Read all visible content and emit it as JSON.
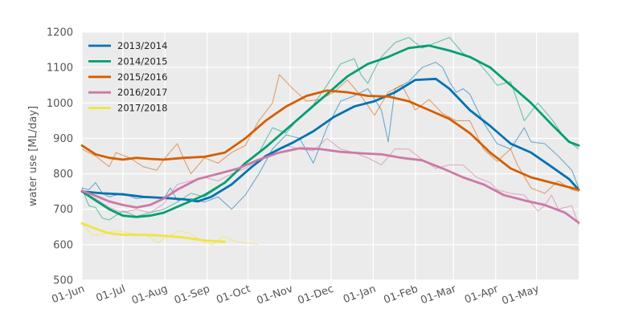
{
  "chart_data": {
    "type": "line",
    "title": "",
    "xlabel": "",
    "ylabel": "water use [ML/day]",
    "ylim": [
      500,
      1200
    ],
    "yticks": [
      500,
      600,
      700,
      800,
      900,
      1000,
      1100,
      1200
    ],
    "xlim": [
      0,
      365
    ],
    "xtick_labels": [
      "01-Jun",
      "01-Jul",
      "01-Aug",
      "01-Sep",
      "01-Oct",
      "01-Nov",
      "01-Dec",
      "01-Jan",
      "01-Feb",
      "01-Mar",
      "01-Apr",
      "01-May"
    ],
    "xtick_days": [
      0,
      30,
      61,
      92,
      122,
      153,
      183,
      214,
      245,
      273,
      304,
      334
    ],
    "grid": true,
    "legend_position": "top-left",
    "series": [
      {
        "name": "2013/2014",
        "color": "#0072B2",
        "smooth": [
          [
            0,
            750
          ],
          [
            15,
            745
          ],
          [
            30,
            742
          ],
          [
            45,
            735
          ],
          [
            60,
            732
          ],
          [
            75,
            728
          ],
          [
            85,
            722
          ],
          [
            95,
            735
          ],
          [
            110,
            770
          ],
          [
            125,
            820
          ],
          [
            135,
            850
          ],
          [
            145,
            870
          ],
          [
            155,
            888
          ],
          [
            170,
            920
          ],
          [
            185,
            960
          ],
          [
            200,
            990
          ],
          [
            215,
            1005
          ],
          [
            230,
            1030
          ],
          [
            245,
            1065
          ],
          [
            260,
            1068
          ],
          [
            270,
            1040
          ],
          [
            285,
            980
          ],
          [
            300,
            935
          ],
          [
            315,
            885
          ],
          [
            330,
            860
          ],
          [
            345,
            820
          ],
          [
            358,
            785
          ],
          [
            365,
            755
          ]
        ],
        "raw": [
          [
            0,
            760
          ],
          [
            5,
            755
          ],
          [
            10,
            775
          ],
          [
            15,
            745
          ],
          [
            20,
            735
          ],
          [
            25,
            740
          ],
          [
            30,
            745
          ],
          [
            40,
            730
          ],
          [
            50,
            735
          ],
          [
            60,
            730
          ],
          [
            65,
            760
          ],
          [
            70,
            725
          ],
          [
            80,
            730
          ],
          [
            90,
            720
          ],
          [
            100,
            735
          ],
          [
            110,
            700
          ],
          [
            120,
            740
          ],
          [
            130,
            800
          ],
          [
            140,
            870
          ],
          [
            150,
            910
          ],
          [
            160,
            900
          ],
          [
            170,
            830
          ],
          [
            180,
            930
          ],
          [
            190,
            1005
          ],
          [
            200,
            1020
          ],
          [
            210,
            1040
          ],
          [
            220,
            980
          ],
          [
            225,
            890
          ],
          [
            230,
            1040
          ],
          [
            240,
            1060
          ],
          [
            250,
            1100
          ],
          [
            260,
            1115
          ],
          [
            265,
            1100
          ],
          [
            270,
            1060
          ],
          [
            275,
            1030
          ],
          [
            280,
            1040
          ],
          [
            285,
            1025
          ],
          [
            295,
            945
          ],
          [
            305,
            885
          ],
          [
            315,
            870
          ],
          [
            325,
            930
          ],
          [
            330,
            890
          ],
          [
            340,
            885
          ],
          [
            350,
            850
          ],
          [
            360,
            810
          ],
          [
            365,
            760
          ]
        ]
      },
      {
        "name": "2014/2015",
        "color": "#009E73",
        "smooth": [
          [
            0,
            750
          ],
          [
            10,
            725
          ],
          [
            20,
            700
          ],
          [
            30,
            682
          ],
          [
            40,
            678
          ],
          [
            50,
            682
          ],
          [
            60,
            690
          ],
          [
            75,
            715
          ],
          [
            90,
            740
          ],
          [
            105,
            775
          ],
          [
            120,
            830
          ],
          [
            135,
            875
          ],
          [
            150,
            925
          ],
          [
            165,
            975
          ],
          [
            180,
            1025
          ],
          [
            195,
            1075
          ],
          [
            210,
            1110
          ],
          [
            225,
            1130
          ],
          [
            240,
            1155
          ],
          [
            255,
            1162
          ],
          [
            270,
            1148
          ],
          [
            285,
            1130
          ],
          [
            300,
            1100
          ],
          [
            315,
            1050
          ],
          [
            330,
            1000
          ],
          [
            345,
            940
          ],
          [
            358,
            890
          ],
          [
            365,
            880
          ]
        ],
        "raw": [
          [
            0,
            760
          ],
          [
            5,
            710
          ],
          [
            10,
            705
          ],
          [
            15,
            675
          ],
          [
            20,
            670
          ],
          [
            30,
            695
          ],
          [
            40,
            680
          ],
          [
            50,
            690
          ],
          [
            60,
            700
          ],
          [
            70,
            720
          ],
          [
            80,
            745
          ],
          [
            90,
            735
          ],
          [
            100,
            760
          ],
          [
            110,
            795
          ],
          [
            120,
            830
          ],
          [
            130,
            860
          ],
          [
            140,
            930
          ],
          [
            150,
            915
          ],
          [
            160,
            960
          ],
          [
            170,
            995
          ],
          [
            180,
            1050
          ],
          [
            190,
            1110
          ],
          [
            200,
            1125
          ],
          [
            205,
            1080
          ],
          [
            210,
            1055
          ],
          [
            215,
            1095
          ],
          [
            220,
            1130
          ],
          [
            230,
            1170
          ],
          [
            240,
            1185
          ],
          [
            250,
            1155
          ],
          [
            260,
            1170
          ],
          [
            270,
            1185
          ],
          [
            280,
            1140
          ],
          [
            290,
            1120
          ],
          [
            300,
            1075
          ],
          [
            305,
            1050
          ],
          [
            315,
            1060
          ],
          [
            325,
            950
          ],
          [
            335,
            1000
          ],
          [
            345,
            955
          ],
          [
            355,
            900
          ],
          [
            365,
            870
          ]
        ]
      },
      {
        "name": "2015/2016",
        "color": "#D55E00",
        "smooth": [
          [
            0,
            880
          ],
          [
            10,
            855
          ],
          [
            20,
            845
          ],
          [
            30,
            840
          ],
          [
            40,
            845
          ],
          [
            50,
            842
          ],
          [
            60,
            840
          ],
          [
            75,
            845
          ],
          [
            90,
            848
          ],
          [
            105,
            860
          ],
          [
            120,
            900
          ],
          [
            135,
            950
          ],
          [
            150,
            990
          ],
          [
            165,
            1020
          ],
          [
            180,
            1035
          ],
          [
            195,
            1030
          ],
          [
            210,
            1020
          ],
          [
            225,
            1018
          ],
          [
            240,
            1005
          ],
          [
            255,
            980
          ],
          [
            270,
            955
          ],
          [
            285,
            915
          ],
          [
            300,
            860
          ],
          [
            315,
            815
          ],
          [
            330,
            790
          ],
          [
            345,
            775
          ],
          [
            358,
            762
          ],
          [
            365,
            755
          ]
        ],
        "raw": [
          [
            0,
            870
          ],
          [
            10,
            850
          ],
          [
            20,
            820
          ],
          [
            25,
            860
          ],
          [
            35,
            845
          ],
          [
            45,
            820
          ],
          [
            55,
            810
          ],
          [
            60,
            840
          ],
          [
            70,
            885
          ],
          [
            75,
            840
          ],
          [
            80,
            800
          ],
          [
            90,
            845
          ],
          [
            100,
            830
          ],
          [
            110,
            860
          ],
          [
            120,
            880
          ],
          [
            130,
            950
          ],
          [
            140,
            1000
          ],
          [
            145,
            1080
          ],
          [
            155,
            1040
          ],
          [
            165,
            1005
          ],
          [
            175,
            1010
          ],
          [
            185,
            1030
          ],
          [
            195,
            1065
          ],
          [
            205,
            1020
          ],
          [
            215,
            965
          ],
          [
            225,
            1030
          ],
          [
            235,
            1050
          ],
          [
            245,
            980
          ],
          [
            255,
            1010
          ],
          [
            265,
            970
          ],
          [
            275,
            950
          ],
          [
            285,
            950
          ],
          [
            295,
            870
          ],
          [
            305,
            835
          ],
          [
            315,
            870
          ],
          [
            320,
            825
          ],
          [
            330,
            760
          ],
          [
            340,
            745
          ],
          [
            350,
            780
          ],
          [
            360,
            755
          ],
          [
            365,
            750
          ]
        ]
      },
      {
        "name": "2016/2017",
        "color": "#CC79A7",
        "smooth": [
          [
            0,
            752
          ],
          [
            10,
            738
          ],
          [
            20,
            722
          ],
          [
            30,
            712
          ],
          [
            40,
            705
          ],
          [
            50,
            712
          ],
          [
            60,
            730
          ],
          [
            70,
            755
          ],
          [
            85,
            785
          ],
          [
            100,
            800
          ],
          [
            115,
            815
          ],
          [
            130,
            840
          ],
          [
            145,
            860
          ],
          [
            160,
            872
          ],
          [
            175,
            870
          ],
          [
            190,
            862
          ],
          [
            205,
            858
          ],
          [
            220,
            855
          ],
          [
            235,
            845
          ],
          [
            250,
            838
          ],
          [
            265,
            815
          ],
          [
            280,
            790
          ],
          [
            295,
            770
          ],
          [
            310,
            740
          ],
          [
            325,
            725
          ],
          [
            340,
            712
          ],
          [
            355,
            690
          ],
          [
            365,
            662
          ]
        ],
        "raw": [
          [
            0,
            750
          ],
          [
            10,
            730
          ],
          [
            20,
            705
          ],
          [
            30,
            690
          ],
          [
            40,
            700
          ],
          [
            50,
            690
          ],
          [
            60,
            715
          ],
          [
            70,
            770
          ],
          [
            80,
            780
          ],
          [
            90,
            790
          ],
          [
            100,
            780
          ],
          [
            110,
            800
          ],
          [
            120,
            815
          ],
          [
            130,
            840
          ],
          [
            140,
            860
          ],
          [
            150,
            880
          ],
          [
            160,
            870
          ],
          [
            170,
            865
          ],
          [
            180,
            900
          ],
          [
            190,
            870
          ],
          [
            200,
            860
          ],
          [
            210,
            845
          ],
          [
            220,
            825
          ],
          [
            230,
            870
          ],
          [
            240,
            870
          ],
          [
            250,
            840
          ],
          [
            260,
            815
          ],
          [
            270,
            825
          ],
          [
            280,
            825
          ],
          [
            290,
            790
          ],
          [
            300,
            775
          ],
          [
            305,
            755
          ],
          [
            315,
            745
          ],
          [
            325,
            740
          ],
          [
            335,
            695
          ],
          [
            340,
            710
          ],
          [
            345,
            740
          ],
          [
            350,
            700
          ],
          [
            360,
            710
          ],
          [
            365,
            655
          ]
        ]
      },
      {
        "name": "2017/2018",
        "color": "#F0E442",
        "smooth": [
          [
            0,
            660
          ],
          [
            10,
            645
          ],
          [
            20,
            632
          ],
          [
            30,
            628
          ],
          [
            45,
            628
          ],
          [
            60,
            625
          ],
          [
            75,
            620
          ],
          [
            90,
            612
          ],
          [
            105,
            608
          ]
        ],
        "raw": [
          [
            0,
            660
          ],
          [
            8,
            625
          ],
          [
            16,
            630
          ],
          [
            24,
            640
          ],
          [
            32,
            635
          ],
          [
            40,
            630
          ],
          [
            48,
            625
          ],
          [
            56,
            605
          ],
          [
            64,
            625
          ],
          [
            72,
            640
          ],
          [
            80,
            630
          ],
          [
            88,
            610
          ],
          [
            96,
            600
          ],
          [
            104,
            625
          ],
          [
            112,
            610
          ],
          [
            120,
            605
          ],
          [
            130,
            600
          ]
        ]
      }
    ]
  }
}
